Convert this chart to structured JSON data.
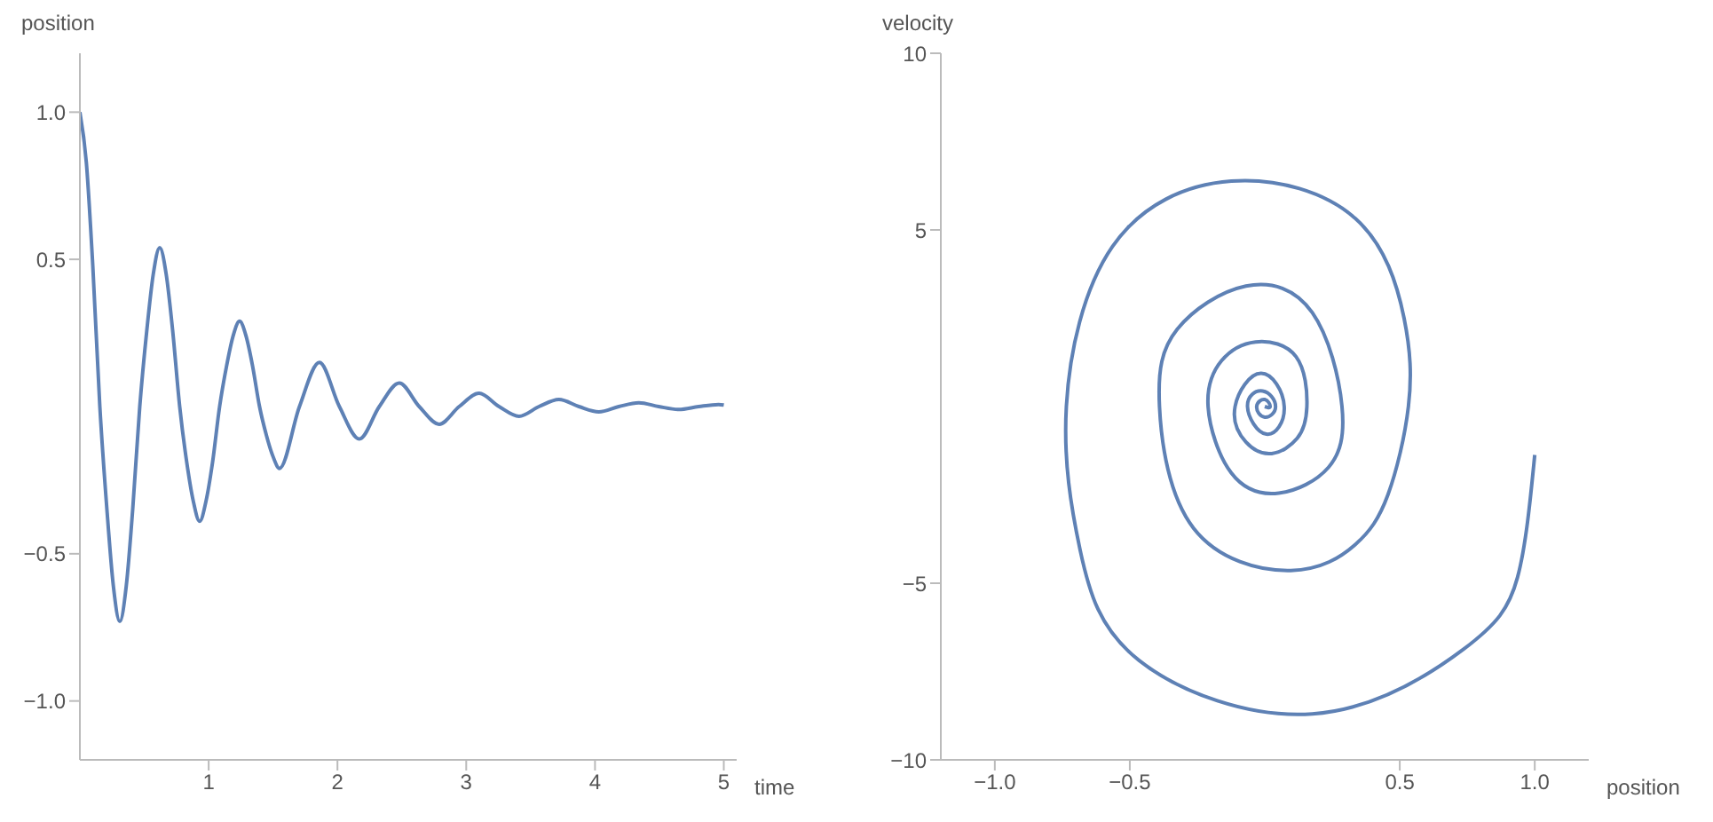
{
  "chart_data": [
    {
      "type": "line",
      "xlabel": "time",
      "ylabel": "position",
      "color": "#5e81b5",
      "xlim": [
        0,
        5.1
      ],
      "ylim": [
        -1.2,
        1.2
      ],
      "xticks": [
        1,
        2,
        3,
        4,
        5
      ],
      "yticks": [
        {
          "value": -1,
          "label": "−1.0"
        },
        {
          "value": -0.5,
          "label": "−0.5"
        },
        {
          "value": 0.5,
          "label": "0.5"
        },
        {
          "value": 1,
          "label": "1.0"
        }
      ],
      "x": [
        0,
        0.05,
        0.1,
        0.155,
        0.21,
        0.26,
        0.31,
        0.36,
        0.41,
        0.465,
        0.52,
        0.57,
        0.62,
        0.67,
        0.72,
        0.775,
        0.83,
        0.88,
        0.93,
        0.98,
        1.03,
        1.085,
        1.14,
        1.19,
        1.24,
        1.29,
        1.34,
        1.395,
        1.45,
        1.5,
        1.55,
        1.705,
        1.86,
        2.015,
        2.17,
        2.325,
        2.48,
        2.635,
        2.79,
        2.945,
        3.1,
        3.255,
        3.41,
        3.565,
        3.72,
        3.875,
        4.03,
        4.185,
        4.34,
        4.495,
        4.65,
        4.805,
        4.96,
        5.0
      ],
      "values": [
        1,
        0.83,
        0.48,
        0,
        -0.35,
        -0.61,
        -0.73,
        -0.61,
        -0.35,
        0,
        0.26,
        0.45,
        0.54,
        0.45,
        0.26,
        0,
        -0.19,
        -0.32,
        -0.39,
        -0.32,
        -0.19,
        0,
        0.14,
        0.24,
        0.29,
        0.24,
        0.14,
        0,
        -0.1,
        -0.17,
        -0.21,
        0,
        0.15,
        0,
        -0.11,
        0,
        0.08,
        0,
        -0.06,
        0,
        0.045,
        0,
        -0.033,
        0,
        0.024,
        0,
        -0.018,
        0,
        0.013,
        0,
        -0.01,
        0,
        0.007,
        0.005
      ]
    },
    {
      "type": "line",
      "xlabel": "position",
      "ylabel": "velocity",
      "color": "#5e81b5",
      "xlim": [
        -1.2,
        1.2
      ],
      "ylim": [
        -10,
        10
      ],
      "xticks": [
        {
          "value": -1,
          "label": "−1.0"
        },
        {
          "value": -0.5,
          "label": "−0.5"
        },
        {
          "value": 0.5,
          "label": "0.5"
        },
        {
          "value": 1,
          "label": "1.0"
        }
      ],
      "yticks": [
        {
          "value": -10,
          "label": "−10"
        },
        {
          "value": -5,
          "label": "−5"
        },
        5,
        10
      ],
      "x": [
        1.0,
        0.936,
        0.736,
        0.176,
        -0.465,
        -0.684,
        -0.735,
        -0.564,
        -0.124,
        0.336,
        0.516,
        0.532,
        0.456,
        0.336,
        0.096,
        -0.264,
        -0.39,
        -0.324,
        -0.07,
        0.176,
        0.286,
        0.236,
        0.052,
        -0.124,
        -0.21,
        -0.16,
        -0.034,
        0.116,
        0.156,
        0.12,
        0.026,
        -0.07,
        -0.11,
        -0.014,
        0.072,
        0.006,
        -0.064,
        -0.008,
        0.04,
        0,
        -0.03,
        0,
        0.02,
        0
      ],
      "values": [
        -1.37,
        -4.84,
        -6.87,
        -8.7,
        -7.19,
        -4.06,
        0,
        4.53,
        6.38,
        5.32,
        2.5,
        0,
        -2.5,
        -3.9,
        -4.64,
        -3.44,
        0,
        2.19,
        3.41,
        2.66,
        0,
        -1.72,
        -2.45,
        -1.88,
        0,
        1.3,
        1.83,
        1.41,
        0,
        -0.9,
        -1.33,
        -1.0,
        0,
        0.94,
        0,
        -0.78,
        0,
        0.44,
        0,
        -0.3,
        0,
        0.2,
        0,
        0
      ]
    }
  ]
}
